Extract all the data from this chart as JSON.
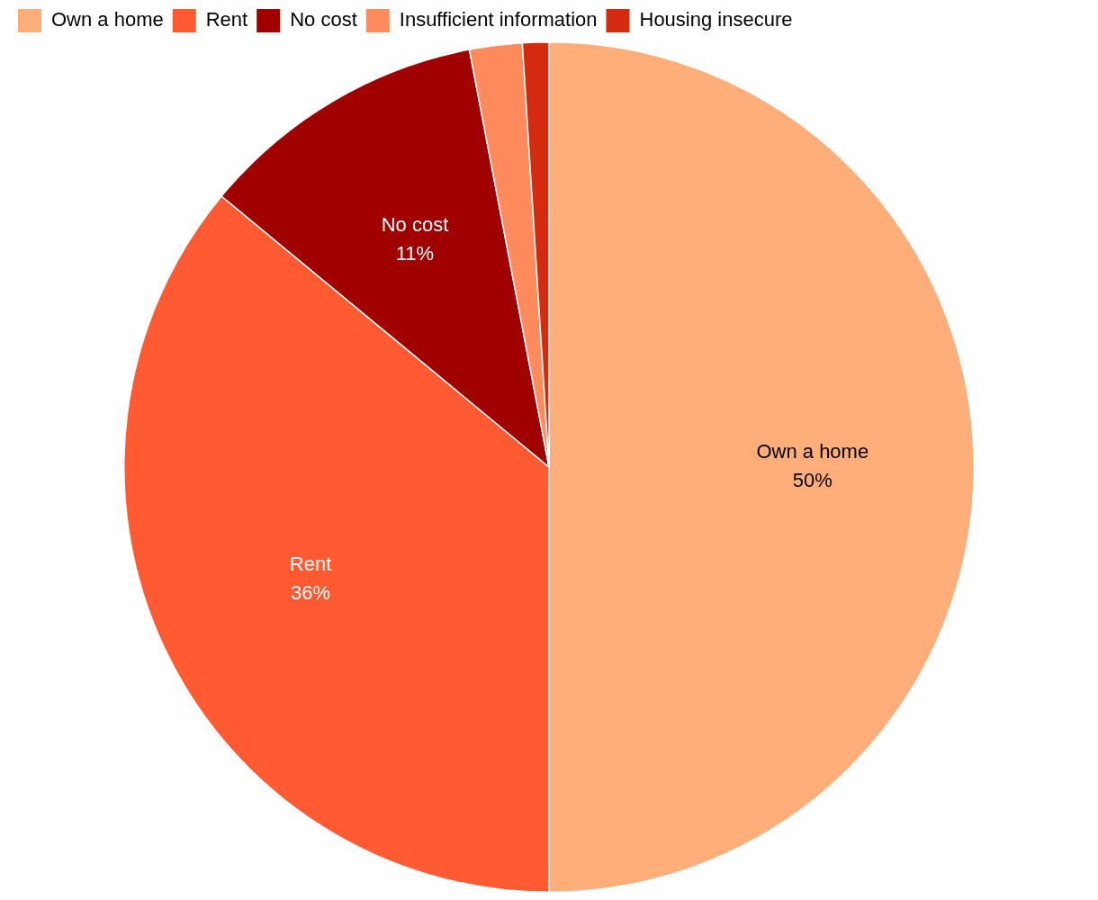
{
  "chart_data": {
    "type": "pie",
    "categories": [
      "Own a home",
      "Rent",
      "No cost",
      "Insufficient information",
      "Housing insecure"
    ],
    "values": [
      50,
      36,
      11,
      2,
      1
    ],
    "colors": [
      "#ffae7a",
      "#ff5a32",
      "#a00000",
      "#ff8a5c",
      "#d42a10"
    ],
    "value_labels": [
      "50%",
      "36%",
      "11%",
      null,
      null
    ],
    "legend": "top left"
  }
}
